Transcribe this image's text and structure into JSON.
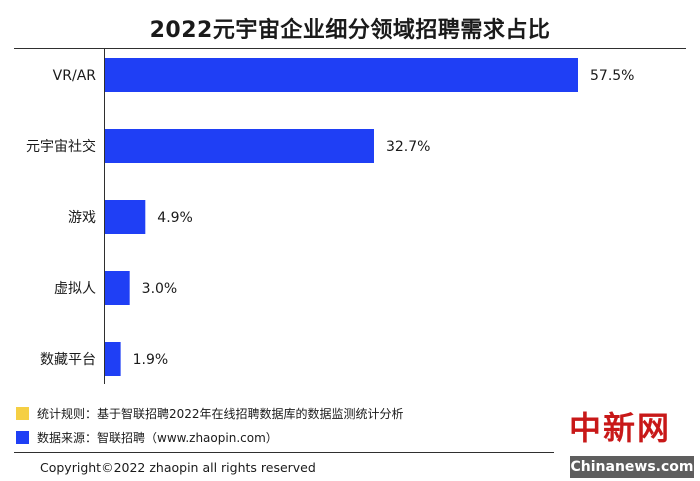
{
  "chart_data": {
    "type": "bar",
    "orientation": "horizontal",
    "title": "2022元宇宙企业细分领域招聘需求占比",
    "categories": [
      "VR/AR",
      "元宇宙社交",
      "游戏",
      "虚拟人",
      "数藏平台"
    ],
    "values": [
      57.5,
      32.7,
      4.9,
      3.0,
      1.9
    ],
    "value_labels": [
      "57.5%",
      "32.7%",
      "4.9%",
      "3.0%",
      "1.9%"
    ],
    "xlim": [
      0,
      60
    ],
    "bar_color": "#1f3ff5",
    "grid": false,
    "legend": "none"
  },
  "notes": [
    {
      "color": "#f5cf44",
      "text": "统计规则：基于智联招聘2022年在线招聘数据库的数据监测统计分析"
    },
    {
      "color": "#1f3ff5",
      "text": "数据来源：智联招聘（www.zhaopin.com）"
    }
  ],
  "copyright": "Copyright©2022 zhaopin all rights reserved",
  "logo": "中新网",
  "watermark": "Chinanews.com"
}
